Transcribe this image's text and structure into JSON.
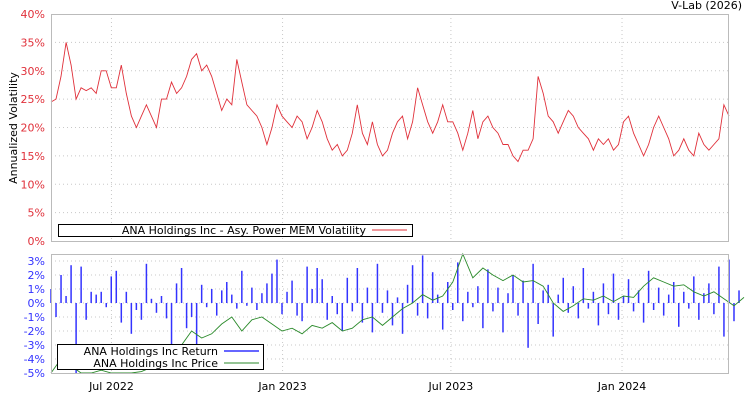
{
  "credit": "V-Lab (2026)",
  "colors": {
    "volatility": "#e0303a",
    "return": "#3333ff",
    "price": "#2a8a2a",
    "grid": "#c8c8c8"
  },
  "chart_data": [
    {
      "type": "line",
      "ylabel": "Annualized Volatility",
      "ylim": [
        0,
        40
      ],
      "yticks": [
        "0%",
        "5%",
        "10%",
        "15%",
        "20%",
        "25%",
        "30%",
        "35%",
        "40%"
      ],
      "ytick_values": [
        0,
        5,
        10,
        15,
        20,
        25,
        30,
        35,
        40
      ],
      "grid": true,
      "legend_placement": "bottom-left",
      "start_date": "2022-04-27",
      "step_days": 5.4,
      "series": [
        {
          "name": "ANA Holdings Inc - Asy. Power MEM Volatility",
          "values": [
            24.5,
            25,
            29,
            35,
            31,
            25,
            27,
            26.5,
            27,
            26,
            30,
            30,
            27,
            27,
            31,
            26,
            22,
            20,
            22,
            24,
            22,
            20,
            25,
            25,
            28,
            26,
            27,
            29,
            32,
            33,
            30,
            31,
            29,
            26,
            23,
            25,
            24,
            32,
            28,
            24,
            23,
            22,
            20,
            17,
            20,
            24,
            22,
            21,
            20,
            22,
            21,
            18,
            20,
            23,
            21,
            18,
            16,
            17,
            15,
            16,
            19,
            24,
            19,
            17,
            21,
            17,
            15,
            16,
            19,
            21,
            22,
            18,
            21,
            27,
            24,
            21,
            19,
            21,
            24,
            21,
            21,
            19,
            16,
            19,
            23,
            18,
            21,
            22,
            20,
            19,
            17,
            17,
            15,
            14,
            16,
            16,
            18,
            29,
            26,
            22,
            21,
            19,
            21,
            23,
            22,
            20,
            19,
            18,
            16,
            18,
            17,
            18,
            16,
            17,
            21,
            22,
            19,
            17,
            15,
            17,
            20,
            22,
            20,
            18,
            15,
            16,
            18,
            16,
            15,
            19,
            17,
            16,
            17,
            18,
            24,
            22
          ]
        }
      ]
    },
    {
      "type": "bar",
      "ylim": [
        -5,
        3.5
      ],
      "yticks": [
        "-5%",
        "-4%",
        "-3%",
        "-2%",
        "-1%",
        "0%",
        "1%",
        "2%",
        "3%"
      ],
      "ytick_values": [
        -5,
        -4,
        -3,
        -2,
        -1,
        0,
        1,
        2,
        3
      ],
      "xticks": [
        {
          "label": "Jul 2022",
          "date": "2022-07-01"
        },
        {
          "label": "Jan 2023",
          "date": "2023-01-01"
        },
        {
          "label": "Jul 2023",
          "date": "2023-07-01"
        },
        {
          "label": "Jan 2024",
          "date": "2024-01-01"
        }
      ],
      "legend_placement": "bottom-left",
      "start_date": "2022-04-27",
      "series": [
        {
          "name": "ANA Holdings Inc Return",
          "step_days": 5.4,
          "values": [
            1,
            -1,
            2,
            0.5,
            2.7,
            -5,
            2.6,
            -1.2,
            0.8,
            0.6,
            0.8,
            -0.3,
            1.9,
            2.3,
            -1.4,
            0.8,
            -2.2,
            -0.5,
            -1.2,
            2.8,
            0.3,
            -0.7,
            0.5,
            -1.1,
            -3,
            1.4,
            2.5,
            -1.8,
            -1,
            -3,
            1.3,
            -0.3,
            1,
            -0.9,
            0.9,
            1.5,
            0.6,
            -0.4,
            2.3,
            -0.2,
            1.1,
            -0.5,
            0.7,
            1.4,
            2.1,
            3.1,
            -0.8,
            0.8,
            1.6,
            -0.9,
            -1.3,
            2.6,
            1,
            2.5,
            1.7,
            -1.2,
            0.5,
            -0.8,
            -2,
            1.8,
            -0.6,
            2.5,
            -1.4,
            1.1,
            -2.1,
            2.8,
            -0.7,
            0.9,
            -1.6,
            0.4,
            -2.2,
            1.3,
            2.7,
            -0.9,
            3.4,
            -1.1,
            2.2,
            0.6,
            -1.9,
            1.5,
            -0.5,
            2.9,
            -1.3,
            0.8,
            -0.3,
            1.2,
            -1.8,
            2.4,
            -0.6,
            1.1,
            -2.1,
            0.7,
            2,
            -0.9,
            1.6,
            -3.2,
            2.8,
            -1.5,
            0.9,
            1.3,
            -2.4,
            0.6,
            1.8,
            -0.7,
            1.2,
            -1.1,
            2.5,
            -0.4,
            0.8,
            -1.6,
            1.4,
            -0.8,
            2.1,
            -1.2,
            0.5,
            1.7,
            -0.6,
            0.9,
            -1.4,
            2.3,
            -0.5,
            1.1,
            -0.9,
            0.6,
            1.5,
            -1.7,
            0.8,
            -0.4,
            1.9,
            -1.2,
            0.7,
            1.4,
            -0.8,
            2.6,
            -2.4,
            3.1,
            -1.3,
            0.9
          ]
        },
        {
          "name": "ANA Holdings Inc Price",
          "step_days": 10.8,
          "values": [
            -5,
            -4,
            -4.5,
            -5,
            -5,
            -4.8,
            -5,
            -5,
            -5,
            -4.9,
            -4.6,
            -4,
            -3.5,
            -3,
            -2,
            -2.5,
            -2.2,
            -1.5,
            -1,
            -2,
            -1.2,
            -1,
            -1.5,
            -2,
            -1.8,
            -2.2,
            -1.6,
            -1.8,
            -1.4,
            -2,
            -1.8,
            -1.2,
            -1,
            -1.6,
            -1,
            -0.4,
            0,
            0.6,
            0.2,
            0.5,
            1.5,
            3.5,
            1.8,
            2.5,
            2,
            1.6,
            2,
            1.5,
            1.6,
            1.2,
            0,
            -0.6,
            -0.2,
            0.3,
            0.2,
            0.5,
            0.1,
            0.5,
            0.4,
            1.2,
            1.8,
            1.5,
            1.2,
            1.3,
            0.8,
            0.5,
            0.8,
            0.3,
            -0.2,
            0.4
          ]
        }
      ]
    }
  ]
}
